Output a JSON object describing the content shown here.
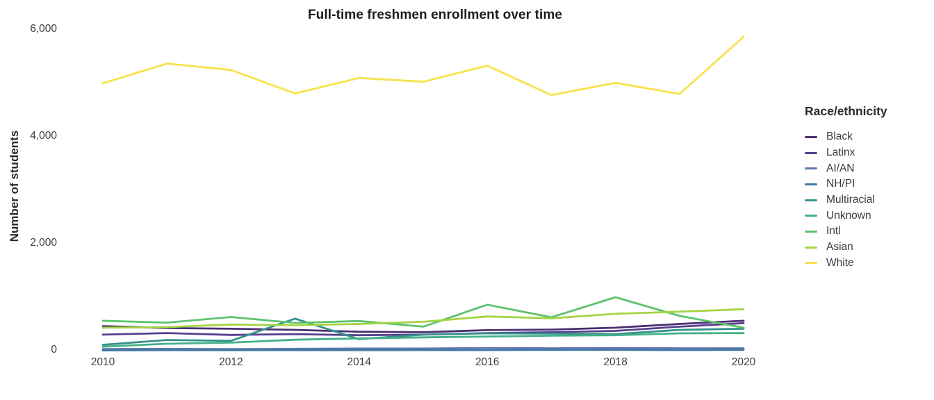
{
  "chart_data": {
    "type": "line",
    "title": "Full-time freshmen enrollment over time",
    "xlabel": "",
    "ylabel": "Number of students",
    "legend_title": "Race/ethnicity",
    "legend_position": "right",
    "grid": false,
    "background": "#ffffff",
    "x": [
      2010,
      2011,
      2012,
      2013,
      2014,
      2015,
      2016,
      2017,
      2018,
      2019,
      2020
    ],
    "x_ticks": [
      2010,
      2012,
      2014,
      2016,
      2018,
      2020
    ],
    "x_tick_labels": [
      "2010",
      "2012",
      "2014",
      "2016",
      "2018",
      "2020"
    ],
    "y_ticks": [
      0,
      2000,
      4000,
      6000
    ],
    "y_tick_labels": [
      "0",
      "2,000",
      "4,000",
      "6,000"
    ],
    "xlim": [
      2010,
      2020
    ],
    "ylim": [
      0,
      6000
    ],
    "series": [
      {
        "name": "Black",
        "color": "#4b2e72",
        "values": [
          460,
          425,
          410,
          390,
          355,
          345,
          385,
          395,
          430,
          500,
          560
        ]
      },
      {
        "name": "Latinx",
        "color": "#56408e",
        "values": [
          300,
          330,
          295,
          310,
          290,
          300,
          330,
          345,
          370,
          450,
          515
        ]
      },
      {
        "name": "AI/AN",
        "color": "#6377ad",
        "values": [
          30,
          35,
          30,
          35,
          40,
          40,
          50,
          45,
          50,
          45,
          45
        ]
      },
      {
        "name": "NH/PI",
        "color": "#4179a2",
        "values": [
          5,
          10,
          10,
          10,
          10,
          12,
          12,
          15,
          15,
          12,
          15
        ]
      },
      {
        "name": "Multiracial",
        "color": "#35918e",
        "values": [
          110,
          200,
          185,
          600,
          215,
          300,
          325,
          320,
          310,
          390,
          410
        ]
      },
      {
        "name": "Unknown",
        "color": "#45b188",
        "values": [
          75,
          130,
          150,
          205,
          230,
          250,
          265,
          280,
          290,
          325,
          330
        ]
      },
      {
        "name": "Intl",
        "color": "#5cc36c",
        "values": [
          560,
          525,
          630,
          520,
          555,
          450,
          860,
          625,
          1000,
          650,
          430
        ]
      },
      {
        "name": "Asian",
        "color": "#a3d443",
        "values": [
          430,
          440,
          490,
          475,
          500,
          540,
          640,
          605,
          690,
          730,
          775
        ]
      },
      {
        "name": "White",
        "color": "#f9e14b",
        "values": [
          5000,
          5370,
          5250,
          4810,
          5100,
          5030,
          5330,
          4780,
          5010,
          4800,
          5870
        ]
      }
    ]
  }
}
